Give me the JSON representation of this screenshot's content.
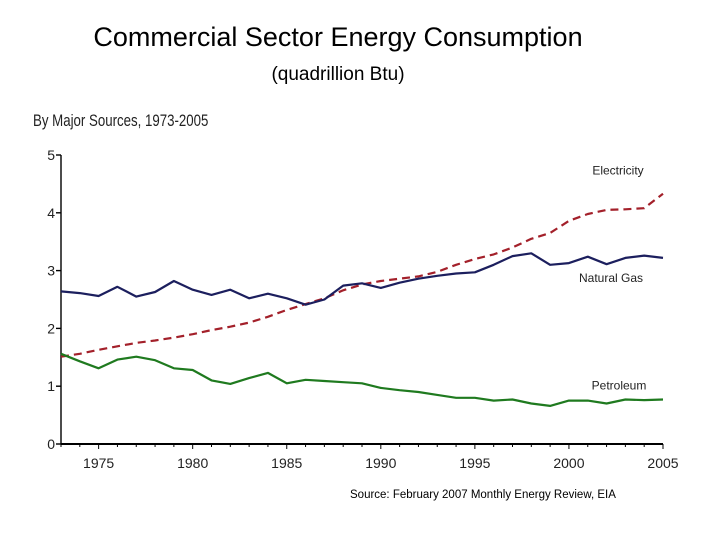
{
  "slide": {
    "title": "Commercial Sector Energy Consumption",
    "subtitle": "(quadrillion Btu)",
    "source": "Source: February 2007 Monthly Energy Review, EIA"
  },
  "chart_data": {
    "type": "line",
    "title": "Commercial Sector Energy Consumption",
    "subtitle": "By Major Sources, 1973-2005",
    "units": "quadrillion Btu",
    "xlabel": "",
    "ylabel": "",
    "xlim": [
      1973,
      2005
    ],
    "ylim": [
      0,
      5
    ],
    "x_ticks": [
      1975,
      1980,
      1985,
      1990,
      1995,
      2000,
      2005
    ],
    "y_ticks": [
      0,
      1,
      2,
      3,
      4,
      5
    ],
    "grid": false,
    "legend": "inline labels at right end of lines",
    "x": [
      1973,
      1974,
      1975,
      1976,
      1977,
      1978,
      1979,
      1980,
      1981,
      1982,
      1983,
      1984,
      1985,
      1986,
      1987,
      1988,
      1989,
      1990,
      1991,
      1992,
      1993,
      1994,
      1995,
      1996,
      1997,
      1998,
      1999,
      2000,
      2001,
      2002,
      2003,
      2004,
      2005
    ],
    "series": [
      {
        "name": "Electricity",
        "color": "#a3202a",
        "style": "dashed",
        "values": [
          1.51,
          1.56,
          1.63,
          1.69,
          1.75,
          1.79,
          1.84,
          1.9,
          1.97,
          2.03,
          2.1,
          2.2,
          2.32,
          2.42,
          2.52,
          2.66,
          2.76,
          2.82,
          2.86,
          2.9,
          2.98,
          3.1,
          3.2,
          3.28,
          3.4,
          3.55,
          3.65,
          3.86,
          3.98,
          4.05,
          4.06,
          4.08,
          4.33
        ]
      },
      {
        "name": "Natural Gas",
        "color": "#1c1f5e",
        "style": "solid",
        "values": [
          2.64,
          2.61,
          2.56,
          2.72,
          2.55,
          2.63,
          2.82,
          2.67,
          2.58,
          2.67,
          2.52,
          2.6,
          2.52,
          2.41,
          2.5,
          2.74,
          2.78,
          2.7,
          2.79,
          2.86,
          2.91,
          2.95,
          2.97,
          3.1,
          3.25,
          3.3,
          3.1,
          3.13,
          3.24,
          3.11,
          3.22,
          3.26,
          3.22
        ]
      },
      {
        "name": "Petroleum",
        "color": "#1f7a1f",
        "style": "solid",
        "values": [
          1.56,
          1.43,
          1.31,
          1.46,
          1.51,
          1.45,
          1.31,
          1.28,
          1.1,
          1.04,
          1.14,
          1.23,
          1.05,
          1.11,
          1.09,
          1.07,
          1.05,
          0.97,
          0.93,
          0.9,
          0.85,
          0.8,
          0.8,
          0.75,
          0.77,
          0.7,
          0.66,
          0.75,
          0.75,
          0.7,
          0.77,
          0.76,
          0.77
        ]
      }
    ]
  }
}
